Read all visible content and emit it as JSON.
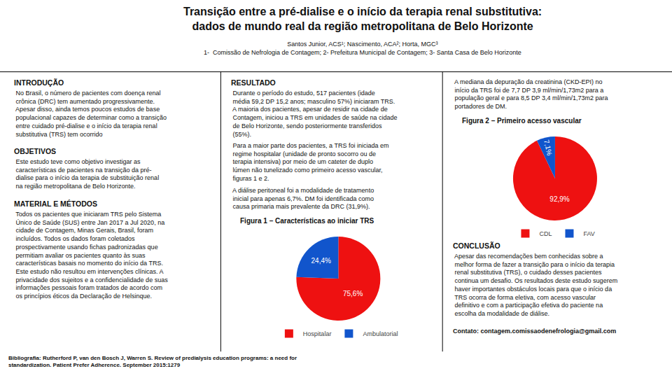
{
  "title": "Transição entre a pré-dialise e o início da terapia renal substitutiva:\ndados de mundo real da região metropolitana de Belo Horizonte",
  "subtitle": "Santos Junior, ACS¹; Nascimento, ACA²; Horta, MGC³\n1-  Comissão de Nefrologia de Contagem; 2- Prefeitura Municipal de Contagem; 3- Santa Casa de Belo Horizonte",
  "annotations": [
    "INTRODUÇÃO",
    " No Brasil, o número de pacientes com doença renal\n crônica (DRC) tem aumentado progressivamente.\n Apesar disso, ainda temos poucos estudos de base\n populacional capazes de determinar como a transição\n entre cuidado pré-dialise e o início da terapia renal\n substitutiva (TRS) tem ocorrido",
    "OBJETIVOS",
    " Este estudo teve como objetivo investigar as\n características de pacientes na transição da pré-\n dialise para o início da terapia de substituição renal\n na região metropolitana de Belo Horizonte.",
    "MATERIAL E MÉTODOS",
    " Todos os pacientes que iniciaram TRS pelo Sistema\n Único de Saúde (SUS) entre Jan 2017 a Jul 2020, na\n cidade de Contagem, Minas Gerais, Brasil, foram\n incluídos. Todos os dados foram coletados\n prospectivamente usando fichas padronizadas que\n permitiam avaliar os pacientes quanto às suas\n características basais no momento do início da TRS.\n Este estudo não resultou em intervenções clínicas. A\n privacidade dos sujeitos e a confidencialidade de suas\n informações pessoais foram tratados de acordo com\n os princípios éticos da Declaração de Helsinque.",
    "Bibliografia: Rutherford P, van den Bosch J, Warren S. Review of predialysis education programs: a need for\nstandardization. Patient Prefer Adherence. September 2015:1279",
    "RESULTADO",
    " Durante o período do estudo, 517 pacientes (idade\n média 59,2 DP 15,2 anos; masculino 57%) iniciaram TRS.\n A maioria dos pacientes, apesar de residir na cidade de\n Contagem, iniciou a TRS em unidades de saúde na cidade\n de Belo Horizonte, sendo posteriormente transferidos\n (55%).",
    " Para a maior parte dos pacientes, a TRS foi iniciada em\n regime hospitalar (unidade de pronto socorro ou de\n terapia intensiva) por meio de um cateter de duplo\n lúmen não tunelizado como primeiro acesso vascular,\n figuras 1 e 2.",
    " A diálise peritoneal foi a modalidade de tratamento\n inicial para apenas 6,7%. DM foi identificada como\n causa primaria mais prevalente da DRC (31,9%).",
    " A mediana da depuração da creatinina (CKD-EPI) no\n início da TRS foi de 7,7 DP 3,9 ml/min/1,73m2 para a\n população geral e para 8,5 DP 3,4 ml/min/1,73m2 para\n portadores de DM.",
    "CONCLUSÃO",
    " Apesar das recomendações bem conhecidas sobre a\n melhor forma de fazer a transição para o início da terapia\n renal substitutiva (TRS), o cuidado desses pacientes\n continua um desafio. Os resultados deste estudo sugerem\n haver importantes obstáculos locais para que o início da\n TRS ocorra de forma eletiva, com acesso vascular\n definitivo e com a participação efetiva do paciente na\n escolha da modalidade de diálise.",
    "Contato: contagem.comissaodenefrologia@gmail.com"
  ],
  "chart_data": [
    {
      "type": "pie",
      "title": "Figura 1 – Características ao iniciar TRS",
      "categories": [
        "Hospitalar",
        "Ambulatorial"
      ],
      "values": [
        75.6,
        24.4
      ],
      "value_labels": [
        "75,6%",
        "24,4%"
      ],
      "colors": [
        "#ee1111",
        "#1155cc"
      ],
      "data_labels": true,
      "legend": "bottom"
    },
    {
      "type": "pie",
      "title": "Figura 2 – Primeiro acesso vascular",
      "categories": [
        "CDL",
        "FAV"
      ],
      "values": [
        92.9,
        7.1
      ],
      "value_labels": [
        "92,9%",
        "7,1%"
      ],
      "colors": [
        "#ee1111",
        "#1155cc"
      ],
      "data_labels": true,
      "legend": "bottom"
    }
  ]
}
